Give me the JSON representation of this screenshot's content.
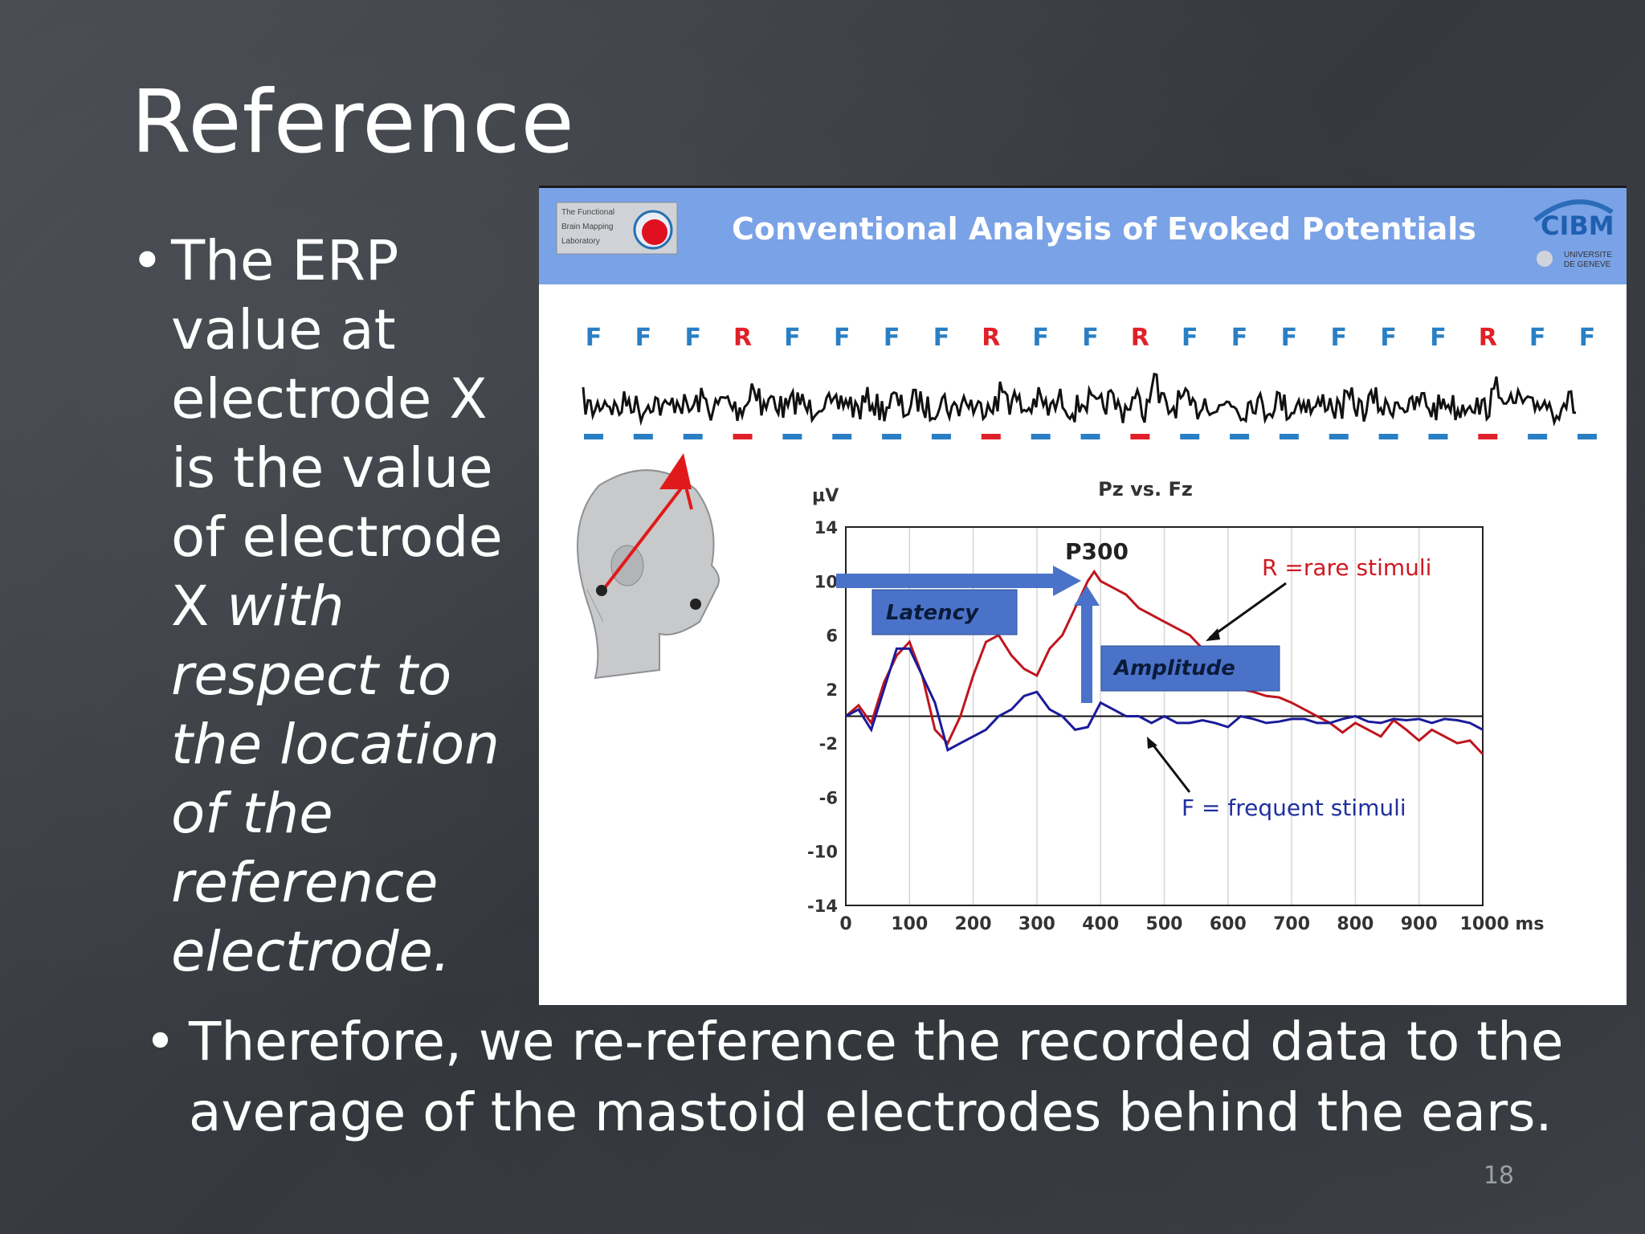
{
  "slide": {
    "title": "Reference",
    "bullet_left_plain": "The ERP value at electrode X is the value of electrode X",
    "bullet_left_italic": "with respect to the location of the reference electrode.",
    "bullet_bottom": "Therefore, we re-reference the recorded data to the average of the mastoid electrodes behind the ears.",
    "page_number": "18",
    "bullet_symbol": "•"
  },
  "figure": {
    "header_title": "Conventional Analysis of Evoked Potentials",
    "lab_logo_text": [
      "The Functional",
      "Brain Mapping",
      "Laboratory"
    ],
    "cibm_logo": "CIBM",
    "university_text": [
      "UNIVERSITE",
      "DE GENEVE"
    ],
    "stimulus_sequence": [
      "F",
      "F",
      "F",
      "R",
      "F",
      "F",
      "F",
      "F",
      "R",
      "F",
      "F",
      "R",
      "F",
      "F",
      "F",
      "F",
      "F",
      "F",
      "R",
      "F",
      "F"
    ],
    "colors": {
      "rare": "#e02028",
      "frequent": "#2a7fc4",
      "header": "#7aa2e6",
      "arrow": "#4a72c8",
      "red_curve": "#c0151e",
      "blue_curve": "#1b1b9a"
    }
  },
  "chart_data": {
    "type": "line",
    "title": "Pz vs. Fz",
    "xlabel": "ms",
    "ylabel": "µV",
    "xlim": [
      0,
      1000
    ],
    "ylim": [
      -14,
      14
    ],
    "xticks": [
      0,
      100,
      200,
      300,
      400,
      500,
      600,
      700,
      800,
      900,
      1000
    ],
    "yticks": [
      14,
      10,
      6,
      2,
      -2,
      -6,
      -10,
      -14
    ],
    "tick_labels_x": [
      "0",
      "100",
      "200",
      "300",
      "400",
      "500",
      "600",
      "700",
      "800",
      "900",
      "1000 ms"
    ],
    "tick_labels_y": [
      "14",
      "10",
      "6",
      "2",
      "-2",
      "-6",
      "-10",
      "-14"
    ],
    "grid": "vertical",
    "annotations": {
      "peak": "P300",
      "latency": "Latency",
      "amplitude": "Amplitude"
    },
    "series": [
      {
        "name": "R =rare stimuli",
        "color": "#c0151e",
        "x": [
          0,
          20,
          40,
          60,
          80,
          100,
          120,
          140,
          160,
          180,
          200,
          220,
          240,
          260,
          280,
          300,
          320,
          340,
          360,
          380,
          390,
          400,
          420,
          440,
          460,
          480,
          500,
          520,
          540,
          560,
          580,
          600,
          620,
          640,
          660,
          680,
          700,
          720,
          740,
          760,
          780,
          800,
          820,
          840,
          860,
          880,
          900,
          920,
          940,
          960,
          980,
          1000
        ],
        "y": [
          0,
          0.8,
          -0.5,
          2.5,
          4.5,
          5.5,
          3,
          -1,
          -2,
          0,
          3,
          5.5,
          6,
          4.5,
          3.5,
          3,
          5,
          6,
          8,
          10,
          10.7,
          10,
          9.5,
          9,
          8,
          7.5,
          7,
          6.5,
          6,
          5,
          4,
          2.5,
          2,
          1.8,
          1.5,
          1.4,
          1,
          0.5,
          0,
          -0.5,
          -1.2,
          -0.5,
          -1,
          -1.5,
          -0.3,
          -1,
          -1.8,
          -1,
          -1.5,
          -2,
          -1.8,
          -2.8
        ]
      },
      {
        "name": "F = frequent stimuli",
        "color": "#1b1b9a",
        "x": [
          0,
          20,
          40,
          60,
          80,
          100,
          120,
          140,
          160,
          180,
          200,
          220,
          240,
          260,
          280,
          300,
          320,
          340,
          360,
          380,
          400,
          420,
          440,
          460,
          480,
          500,
          520,
          540,
          560,
          580,
          600,
          620,
          640,
          660,
          680,
          700,
          720,
          740,
          760,
          780,
          800,
          820,
          840,
          860,
          880,
          900,
          920,
          940,
          960,
          980,
          1000
        ],
        "y": [
          0,
          0.5,
          -1,
          2,
          5,
          5,
          3,
          1,
          -2.5,
          -2,
          -1.5,
          -1,
          0,
          0.5,
          1.5,
          1.8,
          0.5,
          0,
          -1,
          -0.8,
          1,
          0.5,
          0,
          0,
          -0.5,
          0,
          -0.5,
          -0.5,
          -0.3,
          -0.5,
          -0.8,
          0,
          -0.2,
          -0.5,
          -0.4,
          -0.2,
          -0.2,
          -0.5,
          -0.5,
          -0.2,
          0,
          -0.4,
          -0.5,
          -0.2,
          -0.3,
          -0.2,
          -0.5,
          -0.2,
          -0.3,
          -0.5,
          -1
        ]
      }
    ]
  }
}
